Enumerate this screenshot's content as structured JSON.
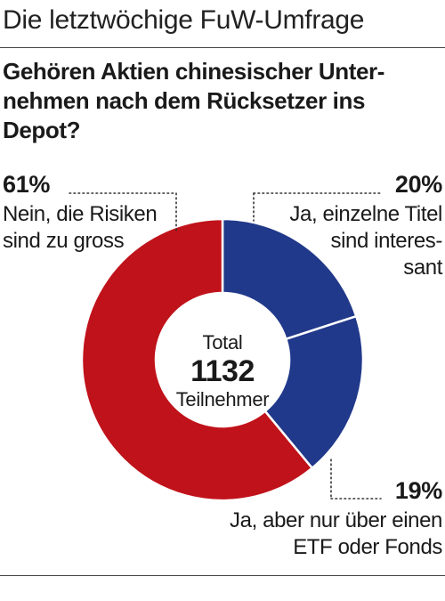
{
  "header": {
    "title": "Die letztwöchige FuW-Umfrage"
  },
  "question": "Gehören Aktien chinesischer Unter-\nnehmen nach dem Rücksetzer ins\nDepot?",
  "center": {
    "total_label": "Total",
    "count": "1132",
    "unit": "Teilnehmer"
  },
  "chart_data": {
    "type": "pie",
    "donut": true,
    "categories": [
      "Ja, einzelne Titel sind interessant",
      "Ja, aber nur über einen ETF oder Fonds",
      "Nein, die Risiken sind zu gross"
    ],
    "values": [
      20,
      19,
      61
    ],
    "colors": [
      "#21398a",
      "#21398a",
      "#c0121a"
    ],
    "pct_labels": [
      "20%",
      "19%",
      "61%"
    ],
    "labels": [
      "Ja, einzelne Titel\nsind interes-\nsant",
      "Ja, aber nur über einen\nETF oder Fonds",
      "Nein, die Risiken\nsind zu gross"
    ],
    "total": 1132
  }
}
